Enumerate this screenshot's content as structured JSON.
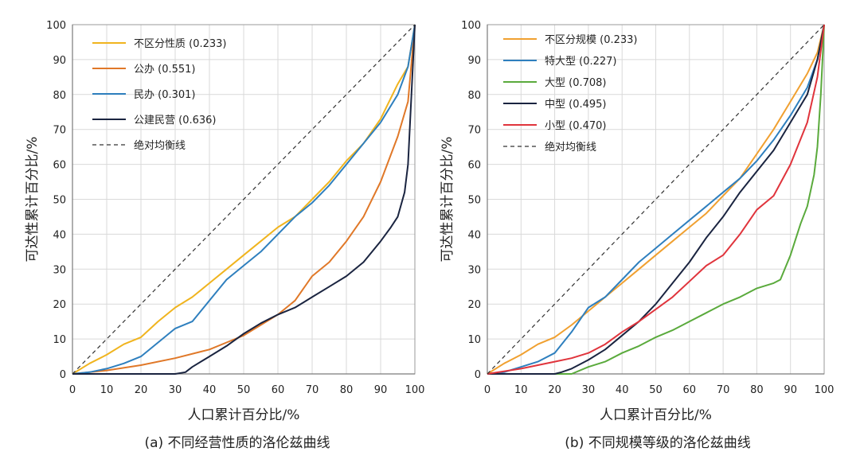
{
  "chart_data": [
    {
      "type": "line",
      "caption": "(a) 不同经营性质的洛伦兹曲线",
      "xlabel": "人口累计百分比/%",
      "ylabel": "可达性累计百分比/%",
      "xlim": [
        0,
        100
      ],
      "ylim": [
        0,
        100
      ],
      "xticks": [
        0,
        10,
        20,
        30,
        40,
        50,
        60,
        70,
        80,
        90,
        100
      ],
      "yticks": [
        0,
        10,
        20,
        30,
        40,
        50,
        60,
        70,
        80,
        90,
        100
      ],
      "grid": true,
      "legend_position": "top-left",
      "series": [
        {
          "name": "不区分性质 (0.233)",
          "color": "#F0B41E",
          "dash": false,
          "x": [
            0,
            5,
            10,
            15,
            20,
            25,
            30,
            35,
            40,
            45,
            50,
            55,
            60,
            65,
            70,
            75,
            80,
            85,
            90,
            95,
            98,
            100
          ],
          "y": [
            0,
            3,
            5.5,
            8.5,
            10.5,
            15,
            19,
            22,
            26,
            30,
            34,
            38,
            42,
            45,
            50,
            55,
            61,
            66,
            73,
            83,
            88,
            100
          ]
        },
        {
          "name": "公办 (0.551)",
          "color": "#E07828",
          "dash": false,
          "x": [
            0,
            10,
            20,
            30,
            40,
            45,
            50,
            55,
            60,
            65,
            70,
            75,
            80,
            85,
            90,
            95,
            98,
            100
          ],
          "y": [
            0,
            1,
            2.5,
            4.5,
            7,
            9,
            11,
            14,
            17,
            21,
            28,
            32,
            38,
            45,
            55,
            68,
            78,
            100
          ]
        },
        {
          "name": "民办 (0.301)",
          "color": "#2E7FBE",
          "dash": false,
          "x": [
            0,
            5,
            10,
            15,
            20,
            25,
            30,
            35,
            40,
            45,
            50,
            55,
            60,
            65,
            70,
            75,
            80,
            85,
            90,
            95,
            98,
            100
          ],
          "y": [
            0,
            0.5,
            1.5,
            3,
            5,
            9,
            13,
            15,
            21,
            27,
            31,
            35,
            40,
            45,
            49,
            54,
            60,
            66,
            72,
            80,
            88,
            100
          ]
        },
        {
          "name": "公建民营 (0.636)",
          "color": "#1A2440",
          "dash": false,
          "x": [
            0,
            30,
            33,
            35,
            40,
            45,
            50,
            55,
            60,
            65,
            70,
            75,
            80,
            85,
            90,
            93,
            95,
            97,
            98,
            99,
            100
          ],
          "y": [
            0,
            0,
            0.5,
            2,
            5,
            8,
            11.5,
            14.5,
            17,
            19,
            22,
            25,
            28,
            32,
            38,
            42,
            45,
            52,
            60,
            80,
            100
          ]
        },
        {
          "name": "绝对均衡线",
          "color": "#333333",
          "dash": true,
          "x": [
            0,
            100
          ],
          "y": [
            0,
            100
          ]
        }
      ]
    },
    {
      "type": "line",
      "caption": "(b) 不同规模等级的洛伦兹曲线",
      "xlabel": "人口累计百分比/%",
      "ylabel": "可达性累计百分比/%",
      "xlim": [
        0,
        100
      ],
      "ylim": [
        0,
        100
      ],
      "xticks": [
        0,
        10,
        20,
        30,
        40,
        50,
        60,
        70,
        80,
        90,
        100
      ],
      "yticks": [
        0,
        10,
        20,
        30,
        40,
        50,
        60,
        70,
        80,
        90,
        100
      ],
      "grid": true,
      "legend_position": "top-left",
      "series": [
        {
          "name": "不区分规模 (0.233)",
          "color": "#F0A030",
          "dash": false,
          "x": [
            0,
            5,
            10,
            15,
            20,
            25,
            30,
            35,
            40,
            45,
            50,
            55,
            60,
            65,
            70,
            75,
            80,
            85,
            90,
            95,
            98,
            100
          ],
          "y": [
            0,
            3,
            5.5,
            8.5,
            10.5,
            14,
            18,
            22,
            26,
            30,
            34,
            38,
            42,
            46,
            51,
            56,
            63,
            70,
            78,
            86,
            92,
            100
          ]
        },
        {
          "name": "特大型 (0.227)",
          "color": "#2E7FBE",
          "dash": false,
          "x": [
            0,
            5,
            10,
            15,
            20,
            25,
            30,
            35,
            40,
            45,
            50,
            55,
            60,
            65,
            70,
            75,
            80,
            85,
            90,
            95,
            98,
            100
          ],
          "y": [
            0,
            0.5,
            2,
            3.5,
            6,
            12,
            19,
            22,
            27,
            32,
            36,
            40,
            44,
            48,
            52,
            56,
            61,
            67,
            74,
            82,
            90,
            100
          ]
        },
        {
          "name": "大型 (0.708)",
          "color": "#5AAA3C",
          "dash": false,
          "x": [
            0,
            25,
            30,
            35,
            40,
            45,
            50,
            55,
            60,
            65,
            70,
            75,
            80,
            85,
            87,
            90,
            93,
            95,
            97,
            98,
            99,
            100
          ],
          "y": [
            0,
            0,
            2,
            3.5,
            6,
            8,
            10.5,
            12.5,
            15,
            17.5,
            20,
            22,
            24.5,
            26,
            27,
            34,
            43,
            48,
            57,
            65,
            80,
            100
          ]
        },
        {
          "name": "中型 (0.495)",
          "color": "#1A2440",
          "dash": false,
          "x": [
            0,
            20,
            22,
            25,
            30,
            35,
            40,
            45,
            50,
            55,
            60,
            65,
            70,
            75,
            80,
            85,
            90,
            95,
            98,
            100
          ],
          "y": [
            0,
            0,
            0.5,
            1.5,
            4,
            7,
            11,
            15,
            20,
            26,
            32,
            39,
            45,
            52,
            58,
            64,
            72,
            80,
            90,
            100
          ]
        },
        {
          "name": "小型 (0.470)",
          "color": "#E0343C",
          "dash": false,
          "x": [
            0,
            10,
            20,
            25,
            30,
            35,
            40,
            45,
            50,
            55,
            60,
            65,
            70,
            75,
            80,
            85,
            90,
            95,
            98,
            100
          ],
          "y": [
            0,
            1.5,
            3.5,
            4.5,
            6,
            8.5,
            12,
            15,
            18.5,
            22,
            26.5,
            31,
            34,
            40,
            47,
            51,
            60,
            72,
            85,
            100
          ]
        },
        {
          "name": "绝对均衡线",
          "color": "#333333",
          "dash": true,
          "x": [
            0,
            100
          ],
          "y": [
            0,
            100
          ]
        }
      ]
    }
  ]
}
